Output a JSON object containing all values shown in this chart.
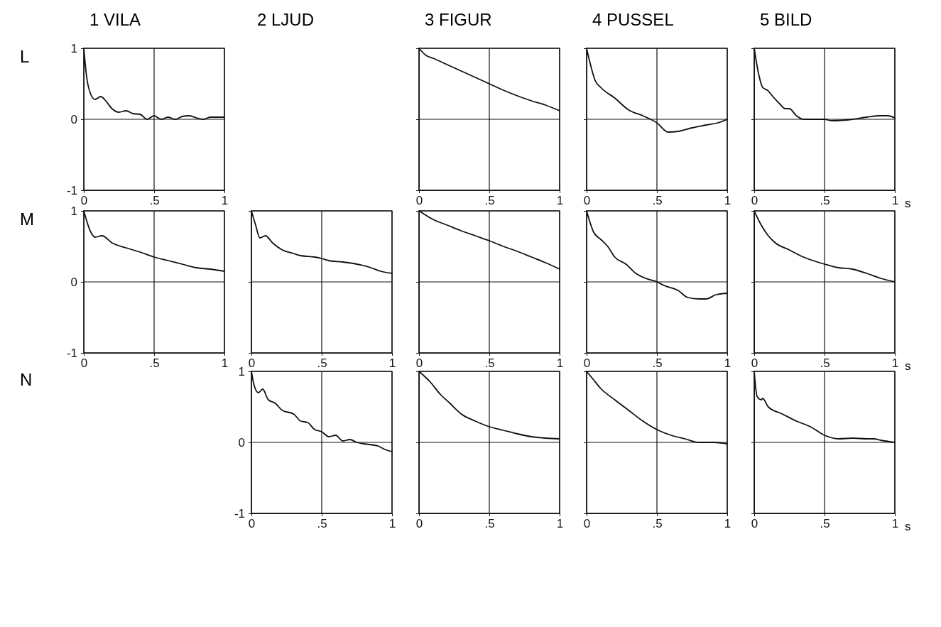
{
  "chart_data": [
    {
      "type": "line",
      "title": "1 VILA",
      "ylabel": "L",
      "xlim": [
        0,
        1
      ],
      "ylim": [
        -1,
        1
      ],
      "xticks": [
        {
          "value": 0,
          "label": "0"
        },
        {
          "value": 0.5,
          "label": ".5"
        },
        {
          "value": 1,
          "label": "1"
        }
      ],
      "yticks": [
        -1,
        0,
        1
      ],
      "grid": true,
      "series": [
        {
          "color": "#111111",
          "x": [
            0,
            0.02,
            0.05,
            0.08,
            0.12,
            0.16,
            0.2,
            0.25,
            0.3,
            0.35,
            0.4,
            0.45,
            0.5,
            0.55,
            0.6,
            0.65,
            0.7,
            0.75,
            0.8,
            0.85,
            0.9,
            1
          ],
          "values": [
            1,
            0.6,
            0.35,
            0.28,
            0.32,
            0.25,
            0.15,
            0.1,
            0.12,
            0.08,
            0.07,
            0,
            0.05,
            0,
            0.03,
            0,
            0.04,
            0.05,
            0.02,
            0,
            0.03,
            0.03
          ]
        }
      ]
    },
    {
      "type": "line",
      "title": "3 FIGUR",
      "xlim": [
        0,
        1
      ],
      "ylim": [
        -1,
        1
      ],
      "xticks": [
        {
          "value": 0,
          "label": "0"
        },
        {
          "value": 0.5,
          "label": ".5"
        },
        {
          "value": 1,
          "label": "1"
        }
      ],
      "yticks": [
        -1,
        0,
        1
      ],
      "grid": true,
      "tick_labels": "x",
      "series": [
        {
          "color": "#111111",
          "x": [
            0,
            0.05,
            0.1,
            0.2,
            0.3,
            0.4,
            0.5,
            0.6,
            0.7,
            0.8,
            0.9,
            1
          ],
          "values": [
            1,
            0.9,
            0.86,
            0.77,
            0.68,
            0.59,
            0.5,
            0.41,
            0.33,
            0.26,
            0.2,
            0.12
          ]
        }
      ]
    },
    {
      "type": "line",
      "title": "4 PUSSEL",
      "xlim": [
        0,
        1
      ],
      "ylim": [
        -1,
        1
      ],
      "xticks": [
        {
          "value": 0,
          "label": "0"
        },
        {
          "value": 0.5,
          "label": ".5"
        },
        {
          "value": 1,
          "label": "1"
        }
      ],
      "yticks": [
        -1,
        0,
        1
      ],
      "grid": true,
      "tick_labels": "x",
      "series": [
        {
          "color": "#111111",
          "x": [
            0,
            0.03,
            0.06,
            0.1,
            0.2,
            0.3,
            0.4,
            0.5,
            0.58,
            0.65,
            0.75,
            0.85,
            0.95,
            1
          ],
          "values": [
            1,
            0.75,
            0.55,
            0.45,
            0.3,
            0.13,
            0.05,
            -0.05,
            -0.18,
            -0.17,
            -0.12,
            -0.08,
            -0.04,
            0
          ]
        }
      ]
    },
    {
      "type": "line",
      "title": "5 BILD",
      "xlabel": "s",
      "xlim": [
        0,
        1
      ],
      "ylim": [
        -1,
        1
      ],
      "xticks": [
        {
          "value": 0,
          "label": "0"
        },
        {
          "value": 0.5,
          "label": ".5"
        },
        {
          "value": 1,
          "label": "1"
        }
      ],
      "yticks": [
        -1,
        0,
        1
      ],
      "grid": true,
      "tick_labels": "x",
      "series": [
        {
          "color": "#111111",
          "x": [
            0,
            0.03,
            0.06,
            0.1,
            0.12,
            0.18,
            0.22,
            0.25,
            0.3,
            0.35,
            0.5,
            0.55,
            0.7,
            0.8,
            0.9,
            0.95,
            1
          ],
          "values": [
            1,
            0.65,
            0.45,
            0.4,
            0.35,
            0.22,
            0.15,
            0.15,
            0.05,
            0,
            0,
            -0.02,
            0,
            0.03,
            0.05,
            0.05,
            0.02
          ]
        }
      ]
    },
    {
      "type": "line",
      "ylabel": "M",
      "xlim": [
        0,
        1
      ],
      "ylim": [
        -1,
        1
      ],
      "xticks": [
        {
          "value": 0,
          "label": "0"
        },
        {
          "value": 0.5,
          "label": ".5"
        },
        {
          "value": 1,
          "label": "1"
        }
      ],
      "yticks": [
        -1,
        0,
        1
      ],
      "grid": true,
      "series": [
        {
          "color": "#111111",
          "x": [
            0,
            0.05,
            0.08,
            0.13,
            0.2,
            0.3,
            0.4,
            0.5,
            0.6,
            0.7,
            0.8,
            0.9,
            1
          ],
          "values": [
            1,
            0.7,
            0.63,
            0.65,
            0.55,
            0.48,
            0.42,
            0.35,
            0.3,
            0.25,
            0.2,
            0.18,
            0.15
          ]
        }
      ]
    },
    {
      "type": "line",
      "title": "2 LJUD",
      "xlim": [
        0,
        1
      ],
      "ylim": [
        -1,
        1
      ],
      "xticks": [
        {
          "value": 0,
          "label": "0"
        },
        {
          "value": 0.5,
          "label": ".5"
        },
        {
          "value": 1,
          "label": "1"
        }
      ],
      "yticks": [
        -1,
        0,
        1
      ],
      "grid": true,
      "tick_labels": "x",
      "series": [
        {
          "color": "#111111",
          "x": [
            0,
            0.03,
            0.06,
            0.1,
            0.15,
            0.22,
            0.3,
            0.35,
            0.45,
            0.5,
            0.55,
            0.65,
            0.75,
            0.85,
            0.92,
            1
          ],
          "values": [
            1,
            0.8,
            0.62,
            0.65,
            0.55,
            0.45,
            0.4,
            0.37,
            0.35,
            0.33,
            0.3,
            0.28,
            0.25,
            0.2,
            0.15,
            0.12
          ]
        }
      ]
    },
    {
      "type": "line",
      "xlim": [
        0,
        1
      ],
      "ylim": [
        -1,
        1
      ],
      "xticks": [
        {
          "value": 0,
          "label": "0"
        },
        {
          "value": 0.5,
          "label": ".5"
        },
        {
          "value": 1,
          "label": "1"
        }
      ],
      "yticks": [
        -1,
        0,
        1
      ],
      "grid": true,
      "tick_labels": "x",
      "series": [
        {
          "color": "#111111",
          "x": [
            0,
            0.1,
            0.2,
            0.3,
            0.4,
            0.5,
            0.6,
            0.7,
            0.8,
            0.9,
            1
          ],
          "values": [
            1,
            0.88,
            0.8,
            0.72,
            0.65,
            0.58,
            0.5,
            0.43,
            0.35,
            0.27,
            0.18
          ]
        }
      ]
    },
    {
      "type": "line",
      "xlim": [
        0,
        1
      ],
      "ylim": [
        -1,
        1
      ],
      "xticks": [
        {
          "value": 0,
          "label": "0"
        },
        {
          "value": 0.5,
          "label": ".5"
        },
        {
          "value": 1,
          "label": "1"
        }
      ],
      "yticks": [
        -1,
        0,
        1
      ],
      "grid": true,
      "tick_labels": "x",
      "series": [
        {
          "color": "#111111",
          "x": [
            0,
            0.05,
            0.1,
            0.15,
            0.2,
            0.28,
            0.35,
            0.42,
            0.5,
            0.55,
            0.65,
            0.72,
            0.8,
            0.85,
            0.92,
            1
          ],
          "values": [
            1,
            0.7,
            0.6,
            0.5,
            0.35,
            0.25,
            0.12,
            0.05,
            0,
            -0.05,
            -0.12,
            -0.22,
            -0.24,
            -0.24,
            -0.18,
            -0.16
          ]
        }
      ]
    },
    {
      "type": "line",
      "xlabel": "s",
      "xlim": [
        0,
        1
      ],
      "ylim": [
        -1,
        1
      ],
      "xticks": [
        {
          "value": 0,
          "label": "0"
        },
        {
          "value": 0.5,
          "label": ".5"
        },
        {
          "value": 1,
          "label": "1"
        }
      ],
      "yticks": [
        -1,
        0,
        1
      ],
      "grid": true,
      "tick_labels": "x",
      "series": [
        {
          "color": "#111111",
          "x": [
            0,
            0.05,
            0.1,
            0.15,
            0.25,
            0.35,
            0.5,
            0.6,
            0.7,
            0.8,
            0.9,
            1
          ],
          "values": [
            1,
            0.8,
            0.65,
            0.55,
            0.45,
            0.35,
            0.25,
            0.2,
            0.18,
            0.12,
            0.05,
            0
          ]
        }
      ]
    },
    {
      "type": "line",
      "ylabel": "N",
      "xlim": [
        0,
        1
      ],
      "ylim": [
        -1,
        1
      ],
      "xticks": [
        {
          "value": 0,
          "label": "0"
        },
        {
          "value": 0.5,
          "label": ".5"
        },
        {
          "value": 1,
          "label": "1"
        }
      ],
      "yticks": [
        -1,
        0,
        1
      ],
      "grid": true,
      "series": [
        {
          "color": "#111111",
          "x": [
            0,
            0.02,
            0.05,
            0.08,
            0.12,
            0.17,
            0.22,
            0.3,
            0.35,
            0.4,
            0.45,
            0.5,
            0.55,
            0.6,
            0.65,
            0.7,
            0.75,
            0.8,
            0.9,
            0.95,
            1
          ],
          "values": [
            1,
            0.8,
            0.7,
            0.75,
            0.6,
            0.55,
            0.45,
            0.4,
            0.3,
            0.28,
            0.18,
            0.15,
            0.08,
            0.1,
            0.02,
            0.04,
            0,
            -0.02,
            -0.05,
            -0.1,
            -0.13
          ]
        }
      ]
    },
    {
      "type": "line",
      "xlim": [
        0,
        1
      ],
      "ylim": [
        -1,
        1
      ],
      "xticks": [
        {
          "value": 0,
          "label": "0"
        },
        {
          "value": 0.5,
          "label": ".5"
        },
        {
          "value": 1,
          "label": "1"
        }
      ],
      "yticks": [
        -1,
        0,
        1
      ],
      "grid": true,
      "tick_labels": "x",
      "series": [
        {
          "color": "#111111",
          "x": [
            0,
            0.08,
            0.15,
            0.22,
            0.3,
            0.4,
            0.5,
            0.6,
            0.7,
            0.8,
            0.9,
            1
          ],
          "values": [
            1,
            0.85,
            0.68,
            0.55,
            0.4,
            0.3,
            0.22,
            0.17,
            0.12,
            0.08,
            0.06,
            0.05
          ]
        }
      ]
    },
    {
      "type": "line",
      "xlim": [
        0,
        1
      ],
      "ylim": [
        -1,
        1
      ],
      "xticks": [
        {
          "value": 0,
          "label": "0"
        },
        {
          "value": 0.5,
          "label": ".5"
        },
        {
          "value": 1,
          "label": "1"
        }
      ],
      "yticks": [
        -1,
        0,
        1
      ],
      "grid": true,
      "tick_labels": "x",
      "series": [
        {
          "color": "#111111",
          "x": [
            0,
            0.05,
            0.1,
            0.2,
            0.3,
            0.4,
            0.5,
            0.6,
            0.7,
            0.8,
            0.9,
            1
          ],
          "values": [
            1,
            0.88,
            0.76,
            0.6,
            0.45,
            0.3,
            0.18,
            0.1,
            0.05,
            0,
            0,
            -0.02
          ]
        }
      ]
    },
    {
      "type": "line",
      "xlabel": "s",
      "xlim": [
        0,
        1
      ],
      "ylim": [
        -1,
        1
      ],
      "xticks": [
        {
          "value": 0,
          "label": "0"
        },
        {
          "value": 0.5,
          "label": ".5"
        },
        {
          "value": 1,
          "label": "1"
        }
      ],
      "yticks": [
        -1,
        0,
        1
      ],
      "grid": true,
      "tick_labels": "x",
      "series": [
        {
          "color": "#111111",
          "x": [
            0,
            0.02,
            0.05,
            0.06,
            0.1,
            0.2,
            0.3,
            0.4,
            0.5,
            0.6,
            0.7,
            0.8,
            0.85,
            0.9,
            1
          ],
          "values": [
            1,
            0.65,
            0.6,
            0.62,
            0.5,
            0.4,
            0.3,
            0.22,
            0.1,
            0.05,
            0.06,
            0.05,
            0.05,
            0.03,
            0
          ]
        }
      ]
    }
  ]
}
